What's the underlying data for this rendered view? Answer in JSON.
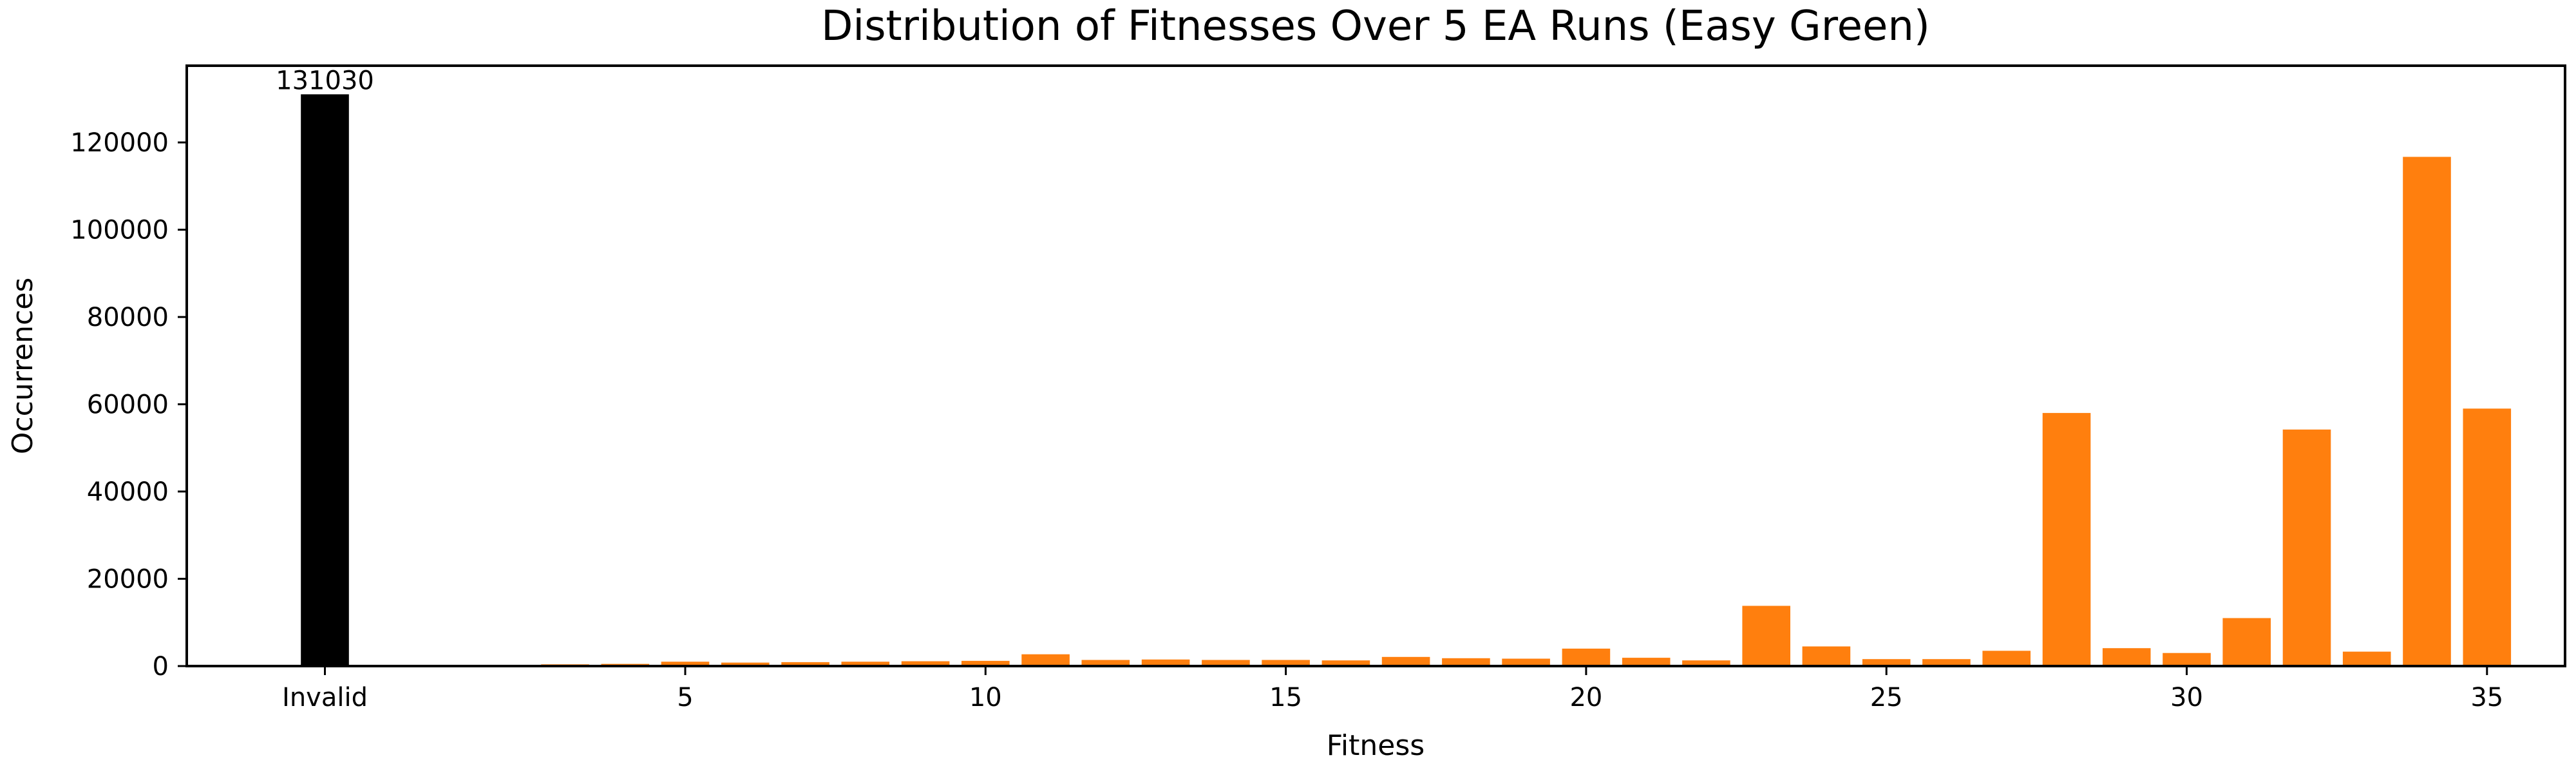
{
  "chart_data": {
    "type": "bar",
    "title": "Distribution of Fitnesses Over 5 EA Runs (Easy Green)",
    "xlabel": "Fitness",
    "ylabel": "Occurrences",
    "ylim": [
      0,
      137582
    ],
    "xlim": [
      -2.3,
      37.3
    ],
    "grid": false,
    "x_tick_labels": [
      {
        "x": 0,
        "label": "Invalid"
      },
      {
        "x": 6,
        "label": "5"
      },
      {
        "x": 11,
        "label": "10"
      },
      {
        "x": 16,
        "label": "15"
      },
      {
        "x": 21,
        "label": "20"
      },
      {
        "x": 26,
        "label": "25"
      },
      {
        "x": 31,
        "label": "30"
      },
      {
        "x": 36,
        "label": "35"
      }
    ],
    "y_ticks": [
      0,
      20000,
      40000,
      60000,
      80000,
      100000,
      120000
    ],
    "y_tick_labels": [
      "0",
      "20000",
      "40000",
      "60000",
      "80000",
      "100000",
      "120000"
    ],
    "series": [
      {
        "name": "",
        "color": "#000000",
        "x": [
          0
        ],
        "values": [
          131030
        ]
      },
      {
        "name": "",
        "color": "#ff7f0e",
        "x": [
          2,
          3,
          4,
          5,
          6,
          7,
          8,
          9,
          10,
          11,
          12,
          13,
          14,
          15,
          16,
          17,
          18,
          19,
          20,
          21,
          22,
          23,
          24,
          25,
          26,
          27,
          28,
          29,
          30,
          31,
          32,
          33,
          34,
          35,
          36
        ],
        "values": [
          100,
          300,
          400,
          500,
          1000,
          800,
          900,
          1000,
          1100,
          1200,
          2700,
          1400,
          1500,
          1400,
          1400,
          1300,
          2100,
          1800,
          1700,
          4000,
          1900,
          1300,
          13800,
          4500,
          1600,
          1600,
          3500,
          58000,
          4100,
          3000,
          11000,
          54200,
          3300,
          116700,
          59000
        ]
      }
    ],
    "annotations": [
      {
        "x": 0,
        "text": "131030"
      }
    ]
  }
}
